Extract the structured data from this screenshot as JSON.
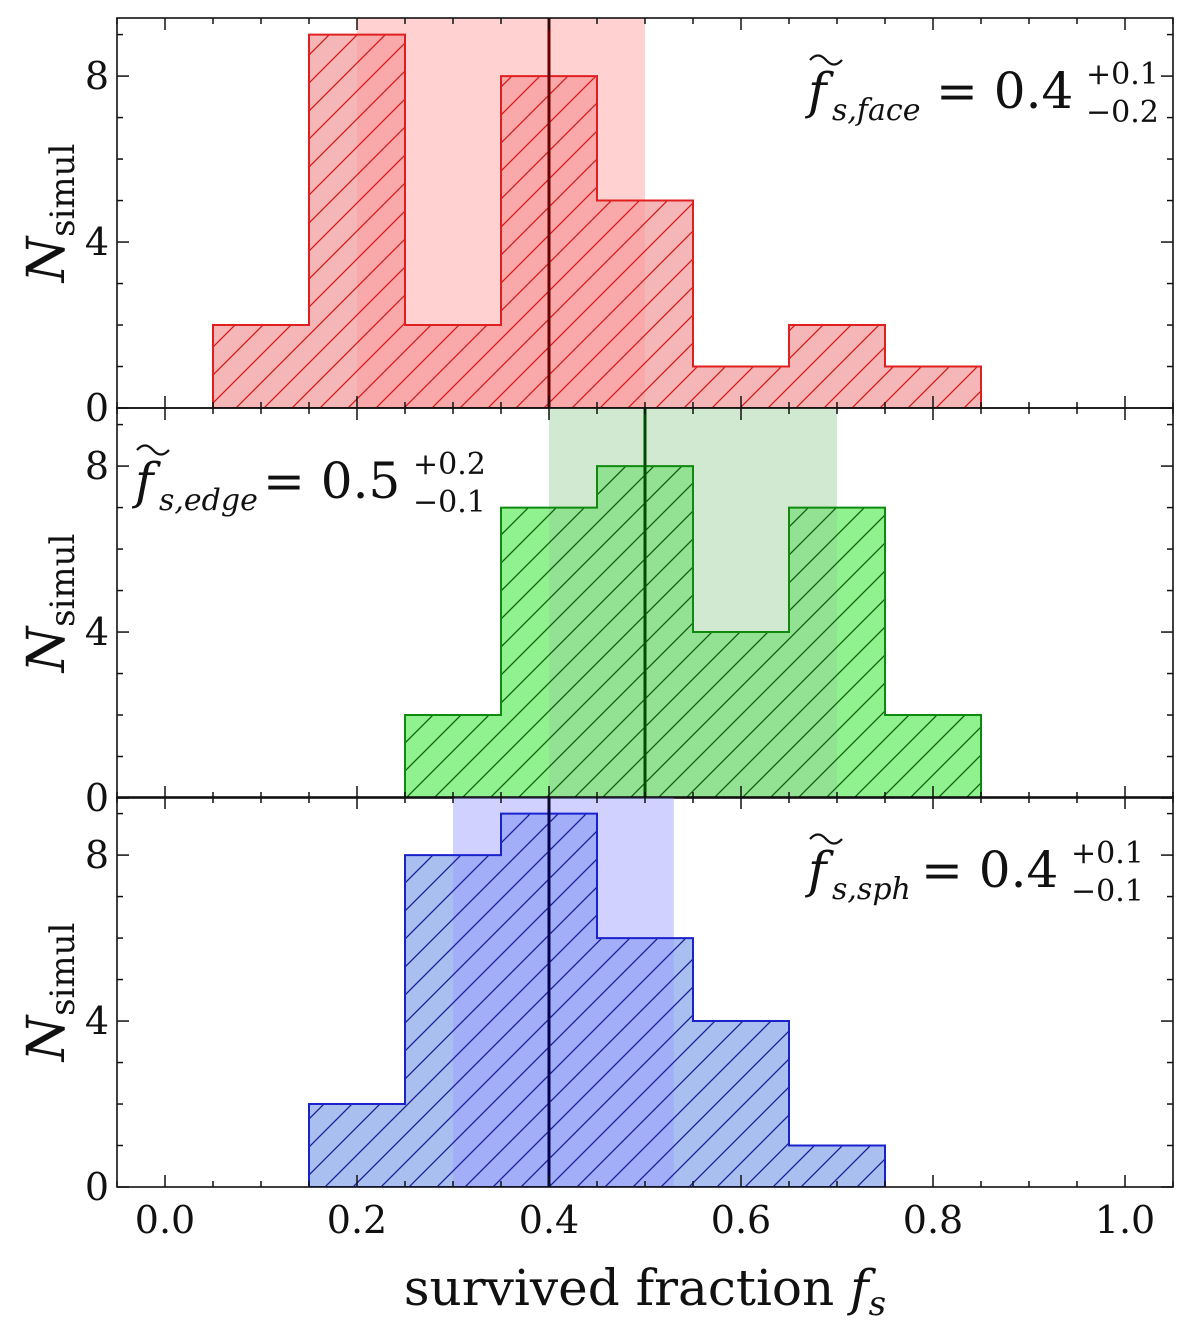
{
  "chart_data": [
    {
      "type": "bar",
      "panel": "top",
      "title": "",
      "xlabel": "",
      "ylabel": "N_simul",
      "ylabel_symbol": "N",
      "ylabel_subscript": "simul",
      "xlim": [
        -0.05,
        1.05
      ],
      "ylim": [
        0,
        9.4
      ],
      "yticks": [
        0,
        4,
        8
      ],
      "ytick_labels": [
        "0",
        "4",
        "8"
      ],
      "bin_edges": [
        0.05,
        0.15,
        0.25,
        0.35,
        0.45,
        0.55,
        0.65,
        0.75,
        0.85
      ],
      "values": [
        2,
        9,
        2,
        8,
        5,
        1,
        2,
        1
      ],
      "median": 0.4,
      "band": [
        0.2,
        0.5
      ],
      "colors": {
        "fill": "#f4b6b6",
        "edge": "#e02020",
        "hatch": "#d81818",
        "band": "#ff9999",
        "median": "#6b0000"
      },
      "annotation": {
        "symbol": "f",
        "subscript": "s,face",
        "equals": "= 0.4",
        "plus": "+0.1",
        "minus": "−0.2",
        "position": "top-right"
      }
    },
    {
      "type": "bar",
      "panel": "middle",
      "title": "",
      "xlabel": "",
      "ylabel": "N_simul",
      "ylabel_symbol": "N",
      "ylabel_subscript": "simul",
      "xlim": [
        -0.05,
        1.05
      ],
      "ylim": [
        0,
        9.4
      ],
      "yticks": [
        0,
        4,
        8
      ],
      "ytick_labels": [
        "0",
        "4",
        "8"
      ],
      "bin_edges": [
        0.25,
        0.35,
        0.45,
        0.55,
        0.65,
        0.75,
        0.85
      ],
      "values": [
        2,
        7,
        8,
        4,
        7,
        2
      ],
      "median": 0.5,
      "band": [
        0.4,
        0.7
      ],
      "colors": {
        "fill": "#8ff28f",
        "edge": "#0e8a0e",
        "hatch": "#0e5e0e",
        "band": "#9acc9a",
        "median": "#004d00"
      },
      "annotation": {
        "symbol": "f",
        "subscript": "s,edge",
        "equals": "= 0.5",
        "plus": "+0.2",
        "minus": "−0.1",
        "position": "top-left"
      }
    },
    {
      "type": "bar",
      "panel": "bottom",
      "title": "",
      "xlabel": "survived fraction f_s",
      "xlabel_text": "survived fraction ",
      "xlabel_symbol": "f",
      "xlabel_subscript": "s",
      "ylabel": "N_simul",
      "ylabel_symbol": "N",
      "ylabel_subscript": "simul",
      "xlim": [
        -0.05,
        1.05
      ],
      "ylim": [
        0,
        9.4
      ],
      "xticks": [
        0.0,
        0.2,
        0.4,
        0.6,
        0.8,
        1.0
      ],
      "xtick_labels": [
        "0.0",
        "0.2",
        "0.4",
        "0.6",
        "0.8",
        "1.0"
      ],
      "yticks": [
        0,
        4,
        8
      ],
      "ytick_labels": [
        "0",
        "4",
        "8"
      ],
      "bin_edges": [
        0.15,
        0.25,
        0.35,
        0.45,
        0.55,
        0.65,
        0.75
      ],
      "values": [
        2,
        8,
        9,
        6,
        4,
        1
      ],
      "median": 0.4,
      "band": [
        0.3,
        0.53
      ],
      "colors": {
        "fill": "#a9bff0",
        "edge": "#1a22cc",
        "hatch": "#1a1a99",
        "band": "#9a9aff",
        "median": "#00004d"
      },
      "annotation": {
        "symbol": "f",
        "subscript": "s,sph",
        "equals": "= 0.4",
        "plus": "+0.1",
        "minus": "−0.1",
        "position": "top-right"
      }
    }
  ]
}
